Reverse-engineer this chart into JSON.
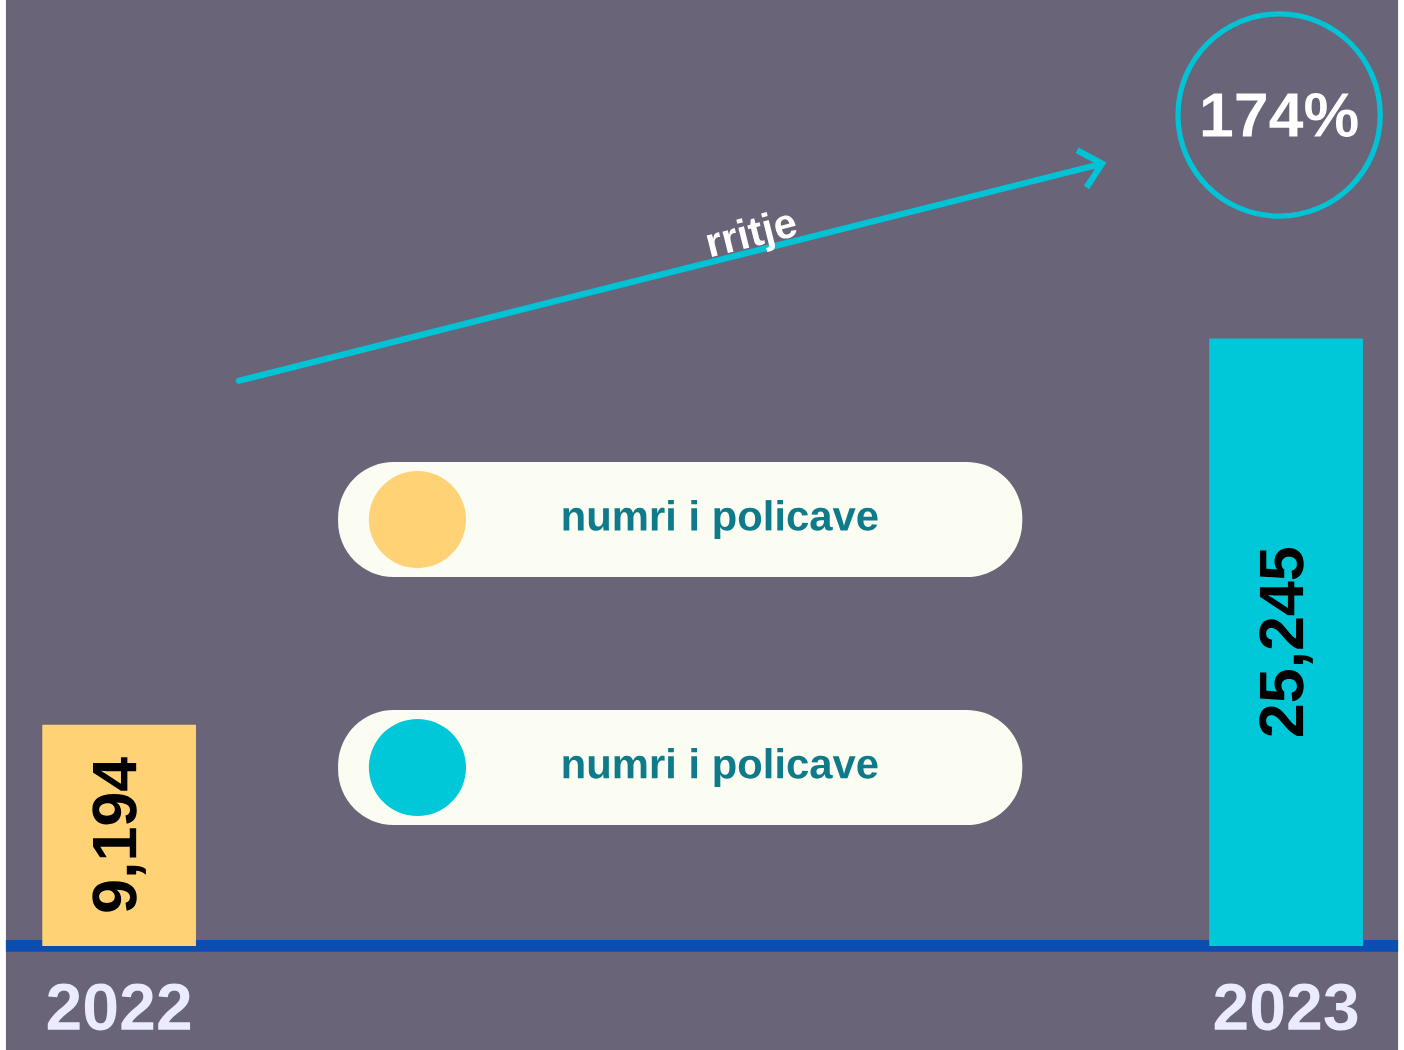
{
  "chart_data": {
    "type": "bar",
    "categories": [
      "2022",
      "2023"
    ],
    "series": [
      {
        "name": "numri i policave",
        "color": "#ffd275",
        "values": [
          9194,
          null
        ],
        "value_labels": [
          "9,194",
          null
        ]
      },
      {
        "name": "numri i policave",
        "color": "#00c8d9",
        "values": [
          null,
          25245
        ],
        "value_labels": [
          null,
          "25,245"
        ]
      }
    ],
    "legend": "center",
    "annotations": [
      "rritje",
      "174%"
    ]
  }
}
